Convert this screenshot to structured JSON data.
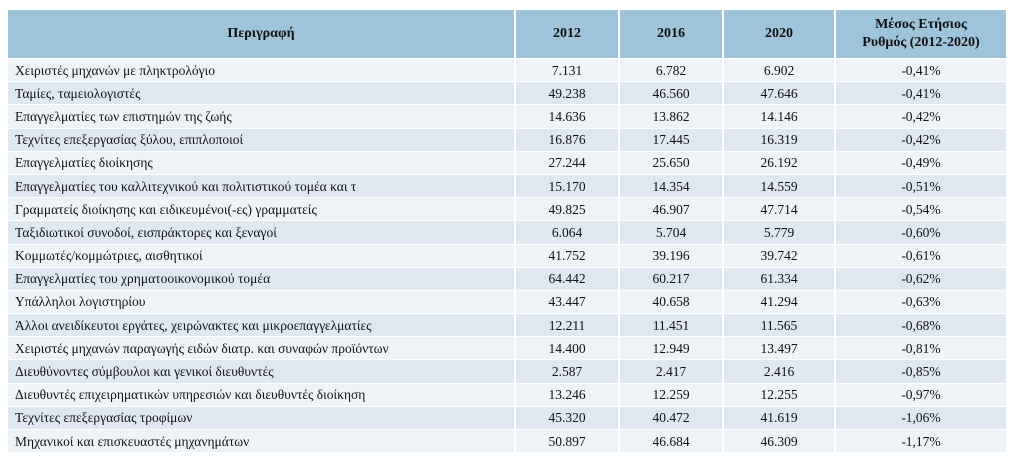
{
  "table": {
    "headers": {
      "description": "Περιγραφή",
      "y2012": "2012",
      "y2016": "2016",
      "y2020": "2020",
      "rate_line1": "Μέσος Ετήσιος",
      "rate_line2": "Ρυθμός (2012-2020)"
    },
    "rows": [
      {
        "desc": "Χειριστές μηχανών με πληκτρολόγιο",
        "y2012": "7.131",
        "y2016": "6.782",
        "y2020": "6.902",
        "rate": "-0,41%"
      },
      {
        "desc": "Ταμίες, ταμειολογιστές",
        "y2012": "49.238",
        "y2016": "46.560",
        "y2020": "47.646",
        "rate": "-0,41%"
      },
      {
        "desc": "Επαγγελματίες των επιστημών της ζωής",
        "y2012": "14.636",
        "y2016": "13.862",
        "y2020": "14.146",
        "rate": "-0,42%"
      },
      {
        "desc": "Τεχνίτες επεξεργασίας ξύλου, επιπλοποιοί",
        "y2012": "16.876",
        "y2016": "17.445",
        "y2020": "16.319",
        "rate": "-0,42%"
      },
      {
        "desc": "Επαγγελματίες διοίκησης",
        "y2012": "27.244",
        "y2016": "25.650",
        "y2020": "26.192",
        "rate": "-0,49%"
      },
      {
        "desc": "Επαγγελματίες του καλλιτεχνικού και πολιτιστικού τομέα και τ",
        "y2012": "15.170",
        "y2016": "14.354",
        "y2020": "14.559",
        "rate": "-0,51%"
      },
      {
        "desc": "Γραμματείς διοίκησης και ειδικευμένοι(-ες) γραμματείς",
        "y2012": "49.825",
        "y2016": "46.907",
        "y2020": "47.714",
        "rate": "-0,54%"
      },
      {
        "desc": "Ταξιδιωτικοί συνοδοί, εισπράκτορες και ξεναγοί",
        "y2012": "6.064",
        "y2016": "5.704",
        "y2020": "5.779",
        "rate": "-0,60%"
      },
      {
        "desc": "Κομμωτές/κομμώτριες, αισθητικοί",
        "y2012": "41.752",
        "y2016": "39.196",
        "y2020": "39.742",
        "rate": "-0,61%"
      },
      {
        "desc": "Επαγγελματίες του χρηματοοικονομικού τομέα",
        "y2012": "64.442",
        "y2016": "60.217",
        "y2020": "61.334",
        "rate": "-0,62%"
      },
      {
        "desc": "Υπάλληλοι λογιστηρίου",
        "y2012": "43.447",
        "y2016": "40.658",
        "y2020": "41.294",
        "rate": "-0,63%"
      },
      {
        "desc": "Άλλοι ανειδίκευτοι εργάτες, χειρώνακτες και μικροεπαγγελματίες",
        "y2012": "12.211",
        "y2016": "11.451",
        "y2020": "11.565",
        "rate": "-0,68%"
      },
      {
        "desc": "Χειριστές μηχανών παραγωγής ειδών διατρ. και συναφών προϊόντων",
        "y2012": "14.400",
        "y2016": "12.949",
        "y2020": "13.497",
        "rate": "-0,81%"
      },
      {
        "desc": "Διευθύνοντες σύμβουλοι και γενικοί διευθυντές",
        "y2012": "2.587",
        "y2016": "2.417",
        "y2020": "2.416",
        "rate": "-0,85%"
      },
      {
        "desc": "Διευθυντές επιχειρηματικών υπηρεσιών και διευθυντές διοίκηση",
        "y2012": "13.246",
        "y2016": "12.259",
        "y2020": "12.255",
        "rate": "-0,97%"
      },
      {
        "desc": "Τεχνίτες επεξεργασίας τροφίμων",
        "y2012": "45.320",
        "y2016": "40.472",
        "y2020": "41.619",
        "rate": "-1,06%"
      },
      {
        "desc": "Μηχανικοί και επισκευαστές μηχανημάτων",
        "y2012": "50.897",
        "y2016": "46.684",
        "y2020": "46.309",
        "rate": "-1,17%"
      }
    ]
  },
  "colors": {
    "header_bg": "#9fc3d8",
    "row_odd_bg": "#eef3f8",
    "row_even_bg": "#dfe8f1"
  }
}
